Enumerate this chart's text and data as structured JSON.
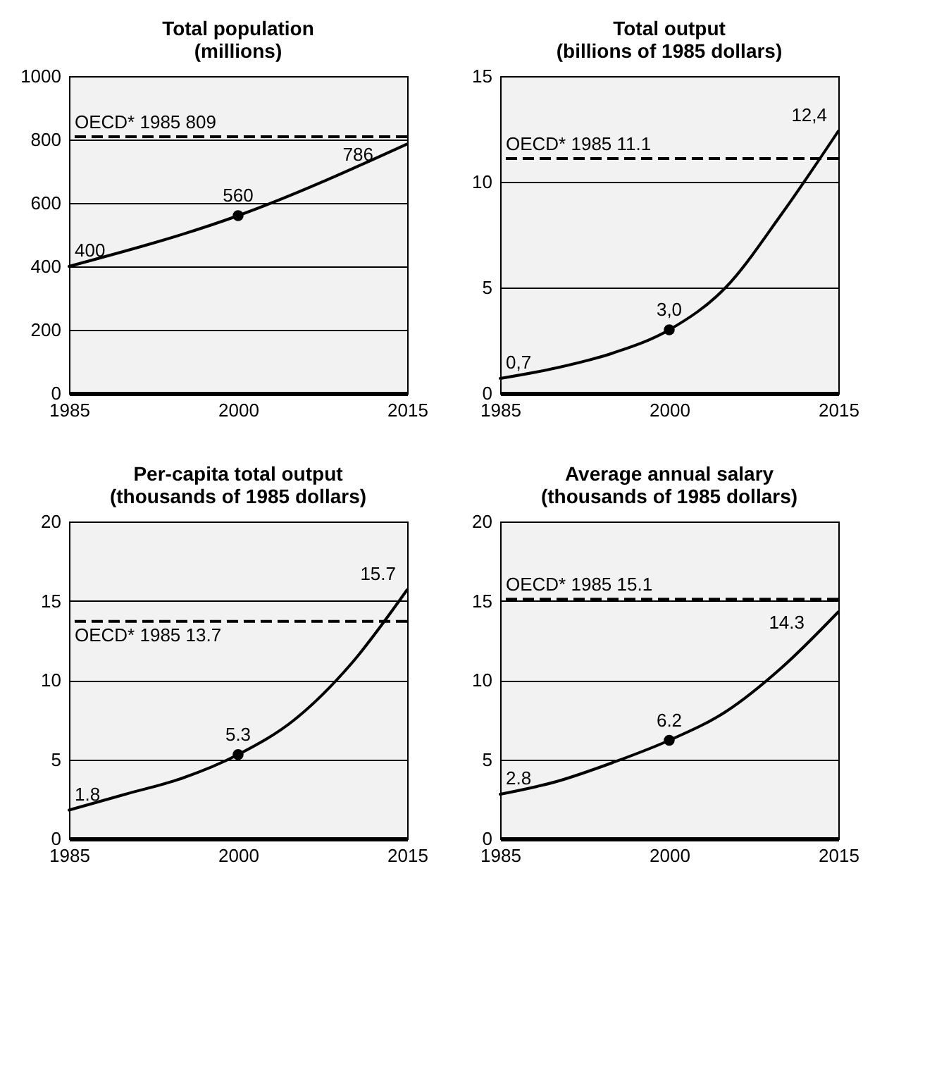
{
  "chart_data": [
    {
      "type": "line",
      "title": "Total population\n(millions)",
      "xlim": [
        1985,
        2015
      ],
      "xticks": [
        1985,
        2000,
        2015
      ],
      "ylim": [
        0,
        1000
      ],
      "yticks": [
        0,
        200,
        400,
        600,
        800,
        1000
      ],
      "grid": "y",
      "marker": "none",
      "ref_lines": [
        {
          "axis": "y",
          "value": 809,
          "label": "OECD* 1985 809",
          "color": "#000000",
          "line_style": "dashed"
        }
      ],
      "series": [
        {
          "type": "line",
          "color": "#000000",
          "x": [
            1985,
            2000,
            2015
          ],
          "values": [
            400,
            560,
            786
          ],
          "value_labels": [
            "400",
            "560",
            "786"
          ]
        },
        {
          "type": "scatter",
          "color": "#000000",
          "marker": "circle",
          "x": [
            2000
          ],
          "values": [
            560
          ]
        }
      ]
    },
    {
      "type": "line",
      "title": "Total output\n(billions of 1985 dollars)",
      "xlim": [
        1985,
        2015
      ],
      "xticks": [
        1985,
        2000,
        2015
      ],
      "ylim": [
        0,
        15
      ],
      "yticks": [
        0,
        5,
        10,
        15
      ],
      "grid": "y",
      "marker": "none",
      "ref_lines": [
        {
          "axis": "y",
          "value": 11.1,
          "label": "OECD* 1985 11.1",
          "color": "#000000",
          "line_style": "dashed"
        }
      ],
      "series": [
        {
          "type": "line",
          "color": "#000000",
          "x": [
            1985,
            1990,
            1995,
            2000,
            2005,
            2010,
            2015
          ],
          "values": [
            0.7,
            1.2,
            1.9,
            3.0,
            5.0,
            8.5,
            12.4
          ],
          "value_labels": [
            "0,7",
            null,
            null,
            "3,0",
            null,
            null,
            "12,4"
          ]
        },
        {
          "type": "scatter",
          "color": "#000000",
          "marker": "circle",
          "x": [
            2000
          ],
          "values": [
            3.0
          ]
        }
      ]
    },
    {
      "type": "line",
      "title": "Per-capita total output\n(thousands of 1985 dollars)",
      "xlim": [
        1985,
        2015
      ],
      "xticks": [
        1985,
        2000,
        2015
      ],
      "ylim": [
        0,
        20
      ],
      "yticks": [
        0,
        5,
        10,
        15,
        20
      ],
      "grid": "y",
      "marker": "none",
      "ref_lines": [
        {
          "axis": "y",
          "value": 13.7,
          "label": "OECD* 1985 13.7",
          "color": "#000000",
          "line_style": "dashed"
        }
      ],
      "series": [
        {
          "type": "line",
          "color": "#000000",
          "x": [
            1985,
            1990,
            1995,
            2000,
            2005,
            2010,
            2015
          ],
          "values": [
            1.8,
            2.8,
            3.8,
            5.3,
            7.5,
            11.0,
            15.7
          ],
          "value_labels": [
            "1.8",
            null,
            null,
            "5.3",
            null,
            null,
            "15.7"
          ]
        },
        {
          "type": "scatter",
          "color": "#000000",
          "marker": "circle",
          "x": [
            2000
          ],
          "values": [
            5.3
          ]
        }
      ]
    },
    {
      "type": "line",
      "title": "Average annual salary\n(thousands of 1985 dollars)",
      "xlim": [
        1985,
        2015
      ],
      "xticks": [
        1985,
        2000,
        2015
      ],
      "ylim": [
        0,
        20
      ],
      "yticks": [
        0,
        5,
        10,
        15,
        20
      ],
      "grid": "y",
      "marker": "none",
      "ref_lines": [
        {
          "axis": "y",
          "value": 15.1,
          "label": "OECD* 1985 15.1",
          "color": "#000000",
          "line_style": "dashed"
        }
      ],
      "series": [
        {
          "type": "line",
          "color": "#000000",
          "x": [
            1985,
            1990,
            1995,
            2000,
            2005,
            2010,
            2015
          ],
          "values": [
            2.8,
            3.6,
            4.8,
            6.2,
            8.0,
            10.8,
            14.3
          ],
          "value_labels": [
            "2.8",
            null,
            null,
            "6.2",
            null,
            null,
            "14.3"
          ]
        },
        {
          "type": "scatter",
          "color": "#000000",
          "marker": "circle",
          "x": [
            2000
          ],
          "values": [
            6.2
          ]
        }
      ]
    }
  ]
}
